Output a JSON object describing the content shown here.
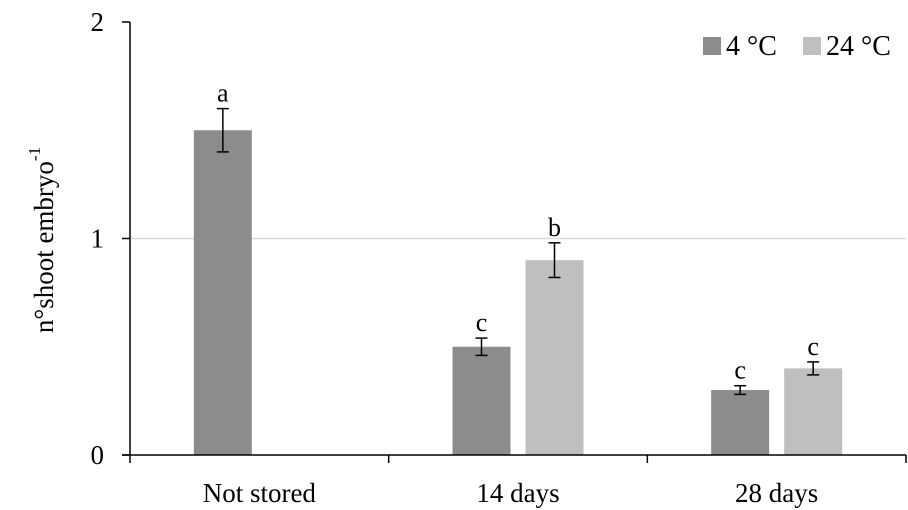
{
  "chart_data": {
    "type": "bar",
    "title": "",
    "xlabel": "",
    "ylabel": "n°shoot embryo",
    "ylabel_superscript": "-1",
    "ylim": [
      0,
      2
    ],
    "yticks": [
      "0",
      "1",
      "2"
    ],
    "ytick_values": [
      0,
      1,
      2
    ],
    "grid": "horizontal at 1",
    "legend_position": "top-right",
    "categories": [
      "Not stored",
      "14 days",
      "28 days"
    ],
    "series": [
      {
        "name": "4 °C",
        "color": "#8c8c8c",
        "values": [
          1.5,
          0.5,
          0.3
        ],
        "errors": [
          0.1,
          0.04,
          0.02
        ],
        "letters": [
          "a",
          "c",
          "c"
        ]
      },
      {
        "name": "24 °C",
        "color": "#bfbfbf",
        "values": [
          null,
          0.9,
          0.4
        ],
        "errors": [
          null,
          0.08,
          0.03
        ],
        "letters": [
          "",
          "b",
          "c"
        ]
      }
    ],
    "colors": {
      "axis": "#000000",
      "grid": "#d9d9d9"
    }
  }
}
